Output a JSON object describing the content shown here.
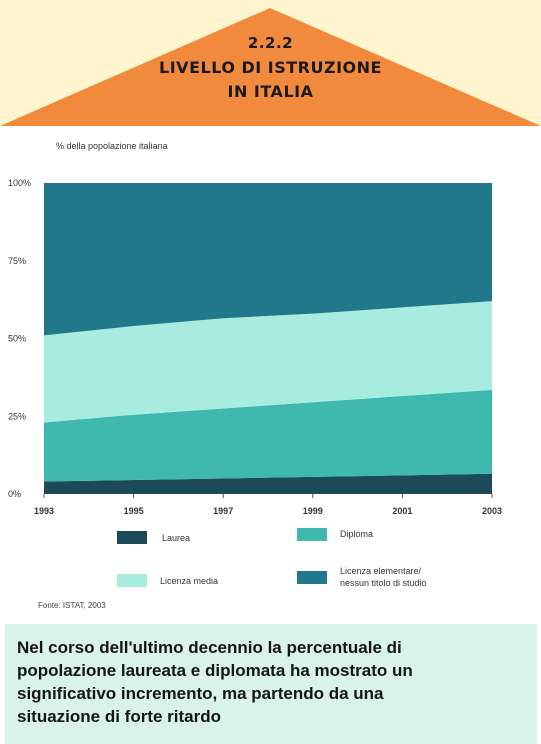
{
  "header": {
    "code": "2.2.2",
    "title_line1": "LIVELLO DI ISTRUZIONE",
    "title_line2": "IN ITALIA",
    "colors": {
      "arrow": "#f28a3e",
      "band": "#fff6d0"
    }
  },
  "chart_data": {
    "type": "area",
    "stacked": true,
    "subtitle": "% della popolazione italiana",
    "x": [
      1993,
      1995,
      1997,
      1999,
      2001,
      2003
    ],
    "x_tick_labels": [
      "1993",
      "1995",
      "1997",
      "1999",
      "2001",
      "2003"
    ],
    "y_tick_labels": [
      "0%",
      "25%",
      "50%",
      "75%",
      "100%"
    ],
    "ylim": [
      0,
      100
    ],
    "series": [
      {
        "name": "Laurea",
        "color": "#1d4a5a",
        "values": [
          4,
          4.5,
          5,
          5.5,
          6,
          6.5
        ]
      },
      {
        "name": "Diploma",
        "color": "#3fb8ae",
        "values": [
          19,
          21,
          22.5,
          24,
          25.5,
          27
        ]
      },
      {
        "name": "Licenza media",
        "color": "#a8ecdf",
        "values": [
          28,
          28.5,
          29,
          28.5,
          28.5,
          28.5
        ]
      },
      {
        "name": "Licenza elementare/ nessun titolo di studio",
        "color": "#21788a",
        "values": [
          49,
          46,
          43.5,
          42,
          40,
          38
        ]
      }
    ],
    "legend": [
      {
        "label": "Laurea",
        "color": "#1d4a5a"
      },
      {
        "label": "Diploma",
        "color": "#3fb8ae"
      },
      {
        "label": "Licenza media",
        "color": "#a8ecdf"
      },
      {
        "label_line1": "Licenza elementare/",
        "label_line2": "nessun titolo di studio",
        "color": "#21788a"
      }
    ],
    "source": "Fonte: ISTAT, 2003"
  },
  "conclusion": {
    "lines": [
      "Nel corso dell'ultimo decennio la percentuale di",
      "popolazione laureata e diplomata ha mostrato un",
      "significativo incremento, ma partendo da una",
      "situazione di forte ritardo"
    ],
    "background": "#d9f2ea"
  }
}
